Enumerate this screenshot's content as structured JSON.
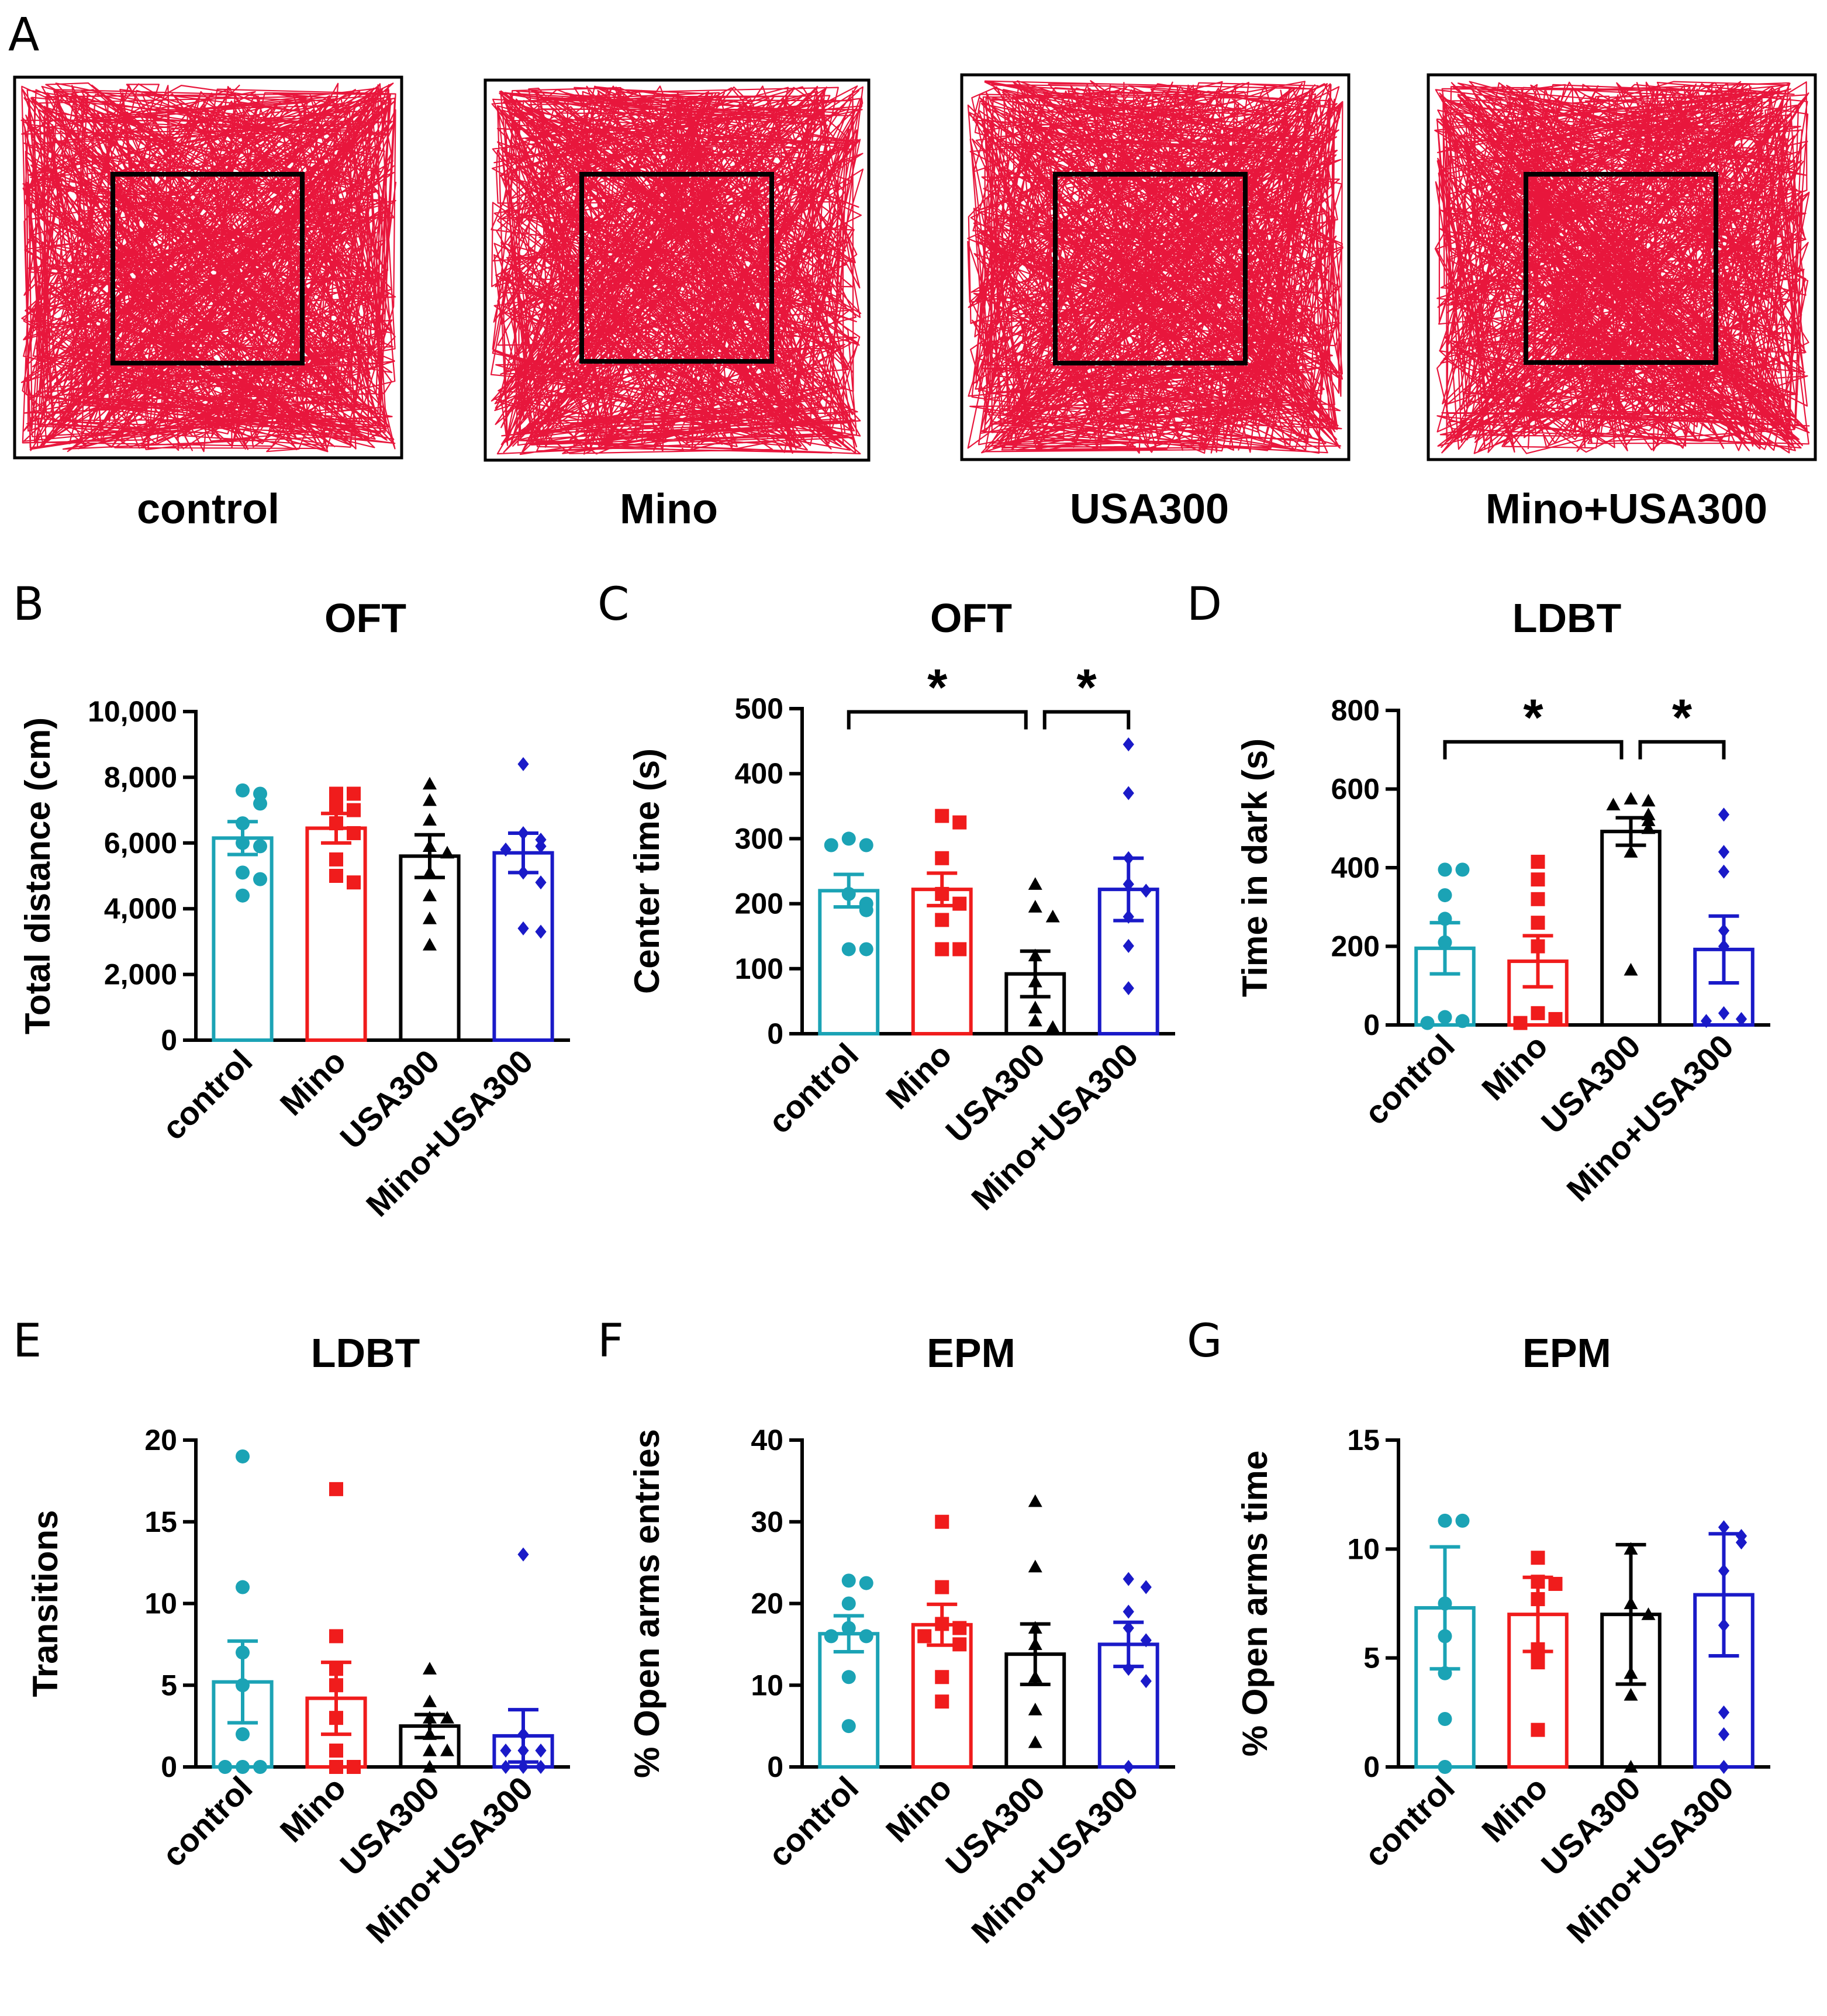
{
  "panel_a": {
    "letter": "A",
    "path_color": "#e8163c",
    "tracks": [
      {
        "label": "control",
        "seed": 11
      },
      {
        "label": "Mino",
        "seed": 23
      },
      {
        "label": "USA300",
        "seed": 37
      },
      {
        "label": "Mino+USA300",
        "seed": 53
      }
    ]
  },
  "colors": {
    "control": "#1ba3b5",
    "Mino": "#f01c1c",
    "USA300": "#000000",
    "Mino+USA300": "#1a1ac8"
  },
  "chart_data": [
    {
      "id": "B",
      "letter": "B",
      "type": "bar",
      "title": "OFT",
      "ylabel": "Total distance (cm)",
      "xlabel": "",
      "ylim": [
        0,
        10000
      ],
      "yticks": [
        0,
        2000,
        4000,
        6000,
        8000,
        10000
      ],
      "ytick_labels": [
        "0",
        "2,000",
        "4,000",
        "6,000",
        "8,000",
        "10,000"
      ],
      "categories": [
        "control",
        "Mino",
        "USA300",
        "Mino+USA300"
      ],
      "values": [
        6150,
        6450,
        5600,
        5700
      ],
      "sem": [
        500,
        450,
        650,
        600
      ],
      "points": [
        [
          7600,
          7500,
          7200,
          6600,
          6000,
          5900,
          5100,
          4900,
          4400
        ],
        [
          7500,
          7500,
          7100,
          7000,
          6600,
          6300,
          5500,
          5000,
          4800
        ],
        [
          7800,
          7300,
          6700,
          5900,
          5700,
          5100,
          4400,
          3700,
          2900
        ],
        [
          8400,
          6300,
          6100,
          5900,
          5800,
          5100,
          4800,
          3400,
          3300
        ]
      ],
      "significance": []
    },
    {
      "id": "C",
      "letter": "C",
      "type": "bar",
      "title": "OFT",
      "ylabel": "Center time (s)",
      "xlabel": "",
      "ylim": [
        0,
        500
      ],
      "yticks": [
        0,
        100,
        200,
        300,
        400,
        500
      ],
      "ytick_labels": [
        "0",
        "100",
        "200",
        "300",
        "400",
        "500"
      ],
      "categories": [
        "control",
        "Mino",
        "USA300",
        "Mino+USA300"
      ],
      "values": [
        220,
        222,
        92,
        222
      ],
      "sem": [
        25,
        25,
        35,
        48
      ],
      "points": [
        [
          300,
          290,
          290,
          215,
          200,
          190,
          130,
          130
        ],
        [
          335,
          325,
          270,
          215,
          200,
          175,
          130,
          130
        ],
        [
          230,
          195,
          180,
          120,
          80,
          40,
          20,
          10
        ],
        [
          445,
          370,
          270,
          230,
          220,
          180,
          135,
          70
        ]
      ],
      "significance": [
        {
          "from": 0,
          "to": 2,
          "label": "*",
          "y": 495
        },
        {
          "from": 2,
          "to": 3,
          "label": "*",
          "y": 495
        }
      ]
    },
    {
      "id": "D",
      "letter": "D",
      "type": "bar",
      "title": "LDBT",
      "ylabel": "Time  in dark (s)",
      "xlabel": "",
      "ylim": [
        0,
        800
      ],
      "yticks": [
        0,
        200,
        400,
        600,
        800
      ],
      "ytick_labels": [
        "0",
        "200",
        "400",
        "600",
        "800"
      ],
      "categories": [
        "control",
        "Mino",
        "USA300",
        "Mino+USA300"
      ],
      "values": [
        195,
        162,
        492,
        192
      ],
      "sem": [
        65,
        65,
        35,
        85
      ],
      "points": [
        [
          395,
          395,
          330,
          270,
          210,
          20,
          10,
          5
        ],
        [
          415,
          370,
          320,
          260,
          200,
          30,
          15,
          5
        ],
        [
          575,
          570,
          560,
          535,
          520,
          500,
          440,
          140
        ],
        [
          535,
          440,
          390,
          240,
          200,
          30,
          15,
          10
        ]
      ],
      "significance": [
        {
          "from": 0,
          "to": 2,
          "label": "*",
          "y": 720
        },
        {
          "from": 2,
          "to": 3,
          "label": "*",
          "y": 720
        }
      ]
    },
    {
      "id": "E",
      "letter": "E",
      "type": "bar",
      "title": "LDBT",
      "ylabel": "Transitions",
      "xlabel": "",
      "ylim": [
        0,
        20
      ],
      "yticks": [
        0,
        5,
        10,
        15,
        20
      ],
      "ytick_labels": [
        "0",
        "5",
        "10",
        "15",
        "20"
      ],
      "categories": [
        "control",
        "Mino",
        "USA300",
        "Mino+USA300"
      ],
      "values": [
        5.2,
        4.2,
        2.5,
        1.9
      ],
      "sem": [
        2.5,
        2.2,
        0.7,
        1.6
      ],
      "points": [
        [
          19,
          11,
          7,
          5,
          2,
          0,
          0,
          0
        ],
        [
          17,
          8,
          6,
          5,
          3,
          1,
          0,
          0
        ],
        [
          6,
          4,
          3,
          3,
          2,
          1,
          1,
          0
        ],
        [
          13,
          2,
          1,
          1,
          1,
          0,
          0,
          0
        ]
      ],
      "significance": []
    },
    {
      "id": "F",
      "letter": "F",
      "type": "bar",
      "title": "EPM",
      "ylabel": "% Open arms entries",
      "xlabel": "",
      "ylim": [
        0,
        40
      ],
      "yticks": [
        0,
        10,
        20,
        30,
        40
      ],
      "ytick_labels": [
        "0",
        "10",
        "20",
        "30",
        "40"
      ],
      "categories": [
        "control",
        "Mino",
        "USA300",
        "Mino+USA300"
      ],
      "values": [
        16.3,
        17.4,
        13.8,
        15.0
      ],
      "sem": [
        2.2,
        2.5,
        3.7,
        2.7
      ],
      "points": [
        [
          22.8,
          22.5,
          20.0,
          17.0,
          16.0,
          16.0,
          11.0,
          5.0
        ],
        [
          30.0,
          22.0,
          17.5,
          17.0,
          16.0,
          15.0,
          11.0,
          8.0
        ],
        [
          32.5,
          24.5,
          17.0,
          15.0,
          11.0,
          7.0,
          3.0
        ],
        [
          23.0,
          22.0,
          19.0,
          17.0,
          15.5,
          12.0,
          10.5,
          0.0
        ]
      ],
      "significance": []
    },
    {
      "id": "G",
      "letter": "G",
      "type": "bar",
      "title": "EPM",
      "ylabel": "% Open arms time",
      "xlabel": "",
      "ylim": [
        0,
        15
      ],
      "yticks": [
        0,
        5,
        10,
        15
      ],
      "ytick_labels": [
        "0",
        "5",
        "10",
        "15"
      ],
      "categories": [
        "control",
        "Mino",
        "USA300",
        "Mino+USA300"
      ],
      "values": [
        7.3,
        7.0,
        7.0,
        7.9
      ],
      "sem": [
        2.8,
        1.7,
        3.2,
        2.8
      ],
      "points": [
        [
          11.3,
          11.3,
          7.5,
          6.0,
          4.3,
          2.2,
          0.0
        ],
        [
          9.6,
          8.5,
          8.4,
          7.7,
          5.4,
          4.8,
          1.7
        ],
        [
          10.0,
          7.5,
          7.0,
          4.3,
          3.3,
          0.0
        ],
        [
          11.0,
          10.6,
          10.3,
          9.0,
          6.5,
          2.5,
          1.5,
          0.0
        ]
      ],
      "significance": []
    }
  ]
}
